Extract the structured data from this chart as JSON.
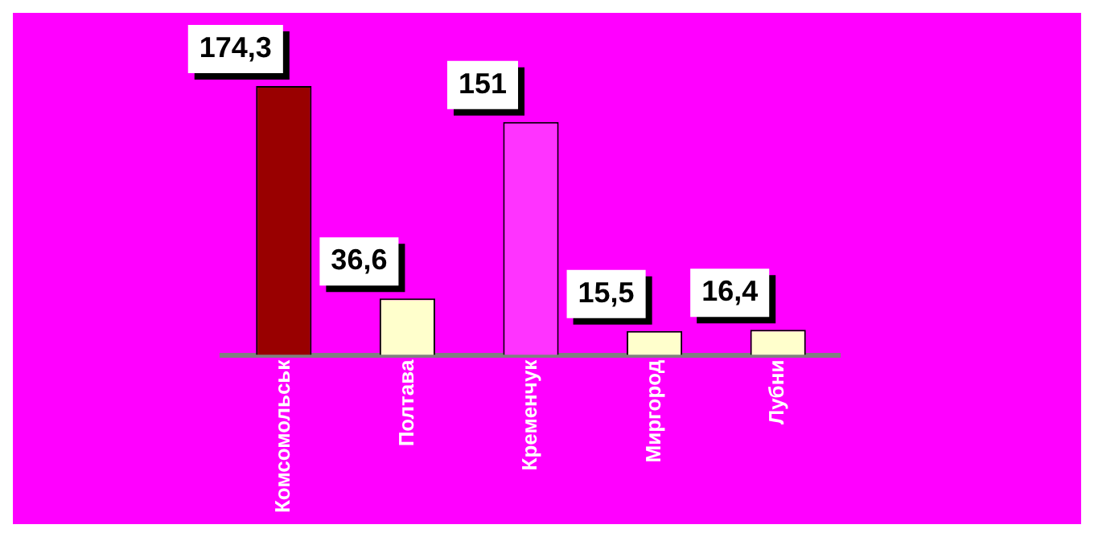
{
  "chart_data": {
    "type": "bar",
    "categories": [
      "Комсомольськ",
      "Полтава",
      "Кременчук",
      "Миргород",
      "Лубни"
    ],
    "values": [
      174.3,
      36.6,
      151,
      15.5,
      16.4
    ],
    "value_labels": [
      "174,3",
      "36,6",
      "151",
      "15,5",
      "16,4"
    ],
    "colors": [
      "#990000",
      "#ffffcc",
      "#ff33ff",
      "#ffffcc",
      "#ffffcc"
    ],
    "grid": false,
    "legend": false
  }
}
